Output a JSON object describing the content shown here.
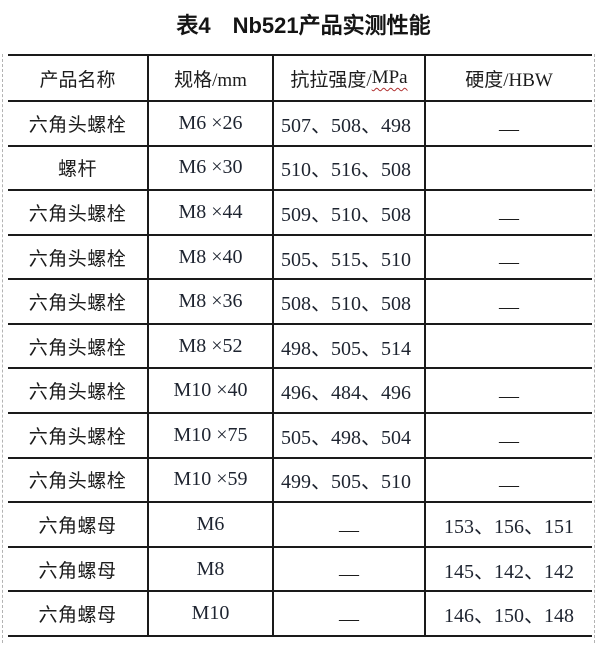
{
  "title": "表4　Nb521产品实测性能",
  "table": {
    "columns": {
      "product": "产品名称",
      "spec": "规格/mm",
      "strength_prefix": "抗拉强度/",
      "strength_unit": "MPa",
      "hardness": "硬度/HBW"
    },
    "rows": [
      {
        "product": "六角头螺栓",
        "spec": "M6 ×26",
        "strength": "507、508、498",
        "hardness": "—"
      },
      {
        "product": "螺杆",
        "spec": "M6 ×30",
        "strength": "510、516、508",
        "hardness": ""
      },
      {
        "product": "六角头螺栓",
        "spec": "M8 ×44",
        "strength": "509、510、508",
        "hardness": "—"
      },
      {
        "product": "六角头螺栓",
        "spec": "M8 ×40",
        "strength": "505、515、510",
        "hardness": "—"
      },
      {
        "product": "六角头螺栓",
        "spec": "M8 ×36",
        "strength": "508、510、508",
        "hardness": "—"
      },
      {
        "product": "六角头螺栓",
        "spec": "M8 ×52",
        "strength": "498、505、514",
        "hardness": ""
      },
      {
        "product": "六角头螺栓",
        "spec": "M10 ×40",
        "strength": "496、484、496",
        "hardness": "—"
      },
      {
        "product": "六角头螺栓",
        "spec": "M10 ×75",
        "strength": "505、498、504",
        "hardness": "—"
      },
      {
        "product": "六角头螺栓",
        "spec": "M10 ×59",
        "strength": "499、505、510",
        "hardness": "—"
      },
      {
        "product": "六角螺母",
        "spec": "M6",
        "strength": "—",
        "hardness": "153、156、151"
      },
      {
        "product": "六角螺母",
        "spec": "M8",
        "strength": "—",
        "hardness": "145、142、142"
      },
      {
        "product": "六角螺母",
        "spec": "M10",
        "strength": "—",
        "hardness": "146、150、148"
      }
    ],
    "colors": {
      "border": "#1a1a1a",
      "text": "#1c1c1c",
      "numbers": "#1e2430",
      "boundary_guide": "#b3b3b3",
      "spellcheck_wave": "#b03030"
    }
  }
}
